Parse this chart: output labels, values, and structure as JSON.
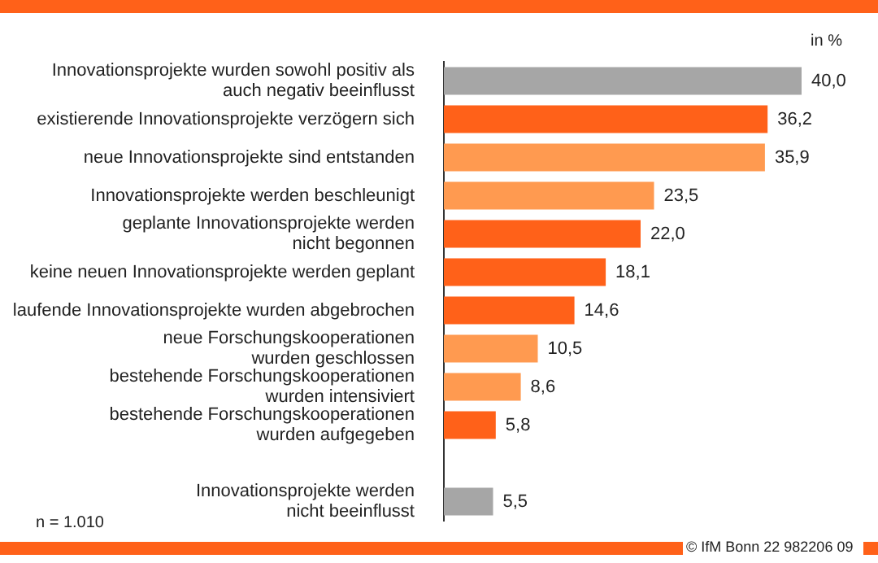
{
  "chart_data": {
    "type": "bar",
    "orientation": "horizontal",
    "categories": [
      "Innovationsprojekte wurden sowohl positiv als\nauch negativ beeinflusst",
      "existierende Innovationsprojekte verzögern sich",
      "neue Innovationsprojekte sind entstanden",
      "Innovationsprojekte werden beschleunigt",
      "geplante Innovationsprojekte werden\nnicht begonnen",
      "keine neuen Innovationsprojekte werden geplant",
      "laufende Innovationsprojekte wurden abgebrochen",
      "neue Forschungskooperationen\nwurden geschlossen",
      "bestehende Forschungskooperationen\nwurden intensiviert",
      "bestehende Forschungskooperationen\nwurden aufgegeben",
      null,
      "Innovationsprojekte werden\nnicht beeinflusst"
    ],
    "values": [
      40.0,
      36.2,
      35.9,
      23.5,
      22.0,
      18.1,
      14.6,
      10.5,
      8.6,
      5.8,
      null,
      5.5
    ],
    "value_labels": [
      "40,0",
      "36,2",
      "35,9",
      "23,5",
      "22,0",
      "18,1",
      "14,6",
      "10,5",
      "8,6",
      "5,8",
      null,
      "5,5"
    ],
    "colors": [
      "#a6a6a6",
      "#ff6119",
      "#ff9a50",
      "#ff9a50",
      "#ff6119",
      "#ff6119",
      "#ff6119",
      "#ff9a50",
      "#ff9a50",
      "#ff6119",
      "#ff6119",
      "#a6a6a6"
    ],
    "xlim": [
      0,
      40
    ],
    "xlabel": "in %",
    "tick_labels": "y",
    "legend": false,
    "annotations": [
      "n = 1.010",
      "© IfM Bonn 22 982206 09"
    ]
  }
}
